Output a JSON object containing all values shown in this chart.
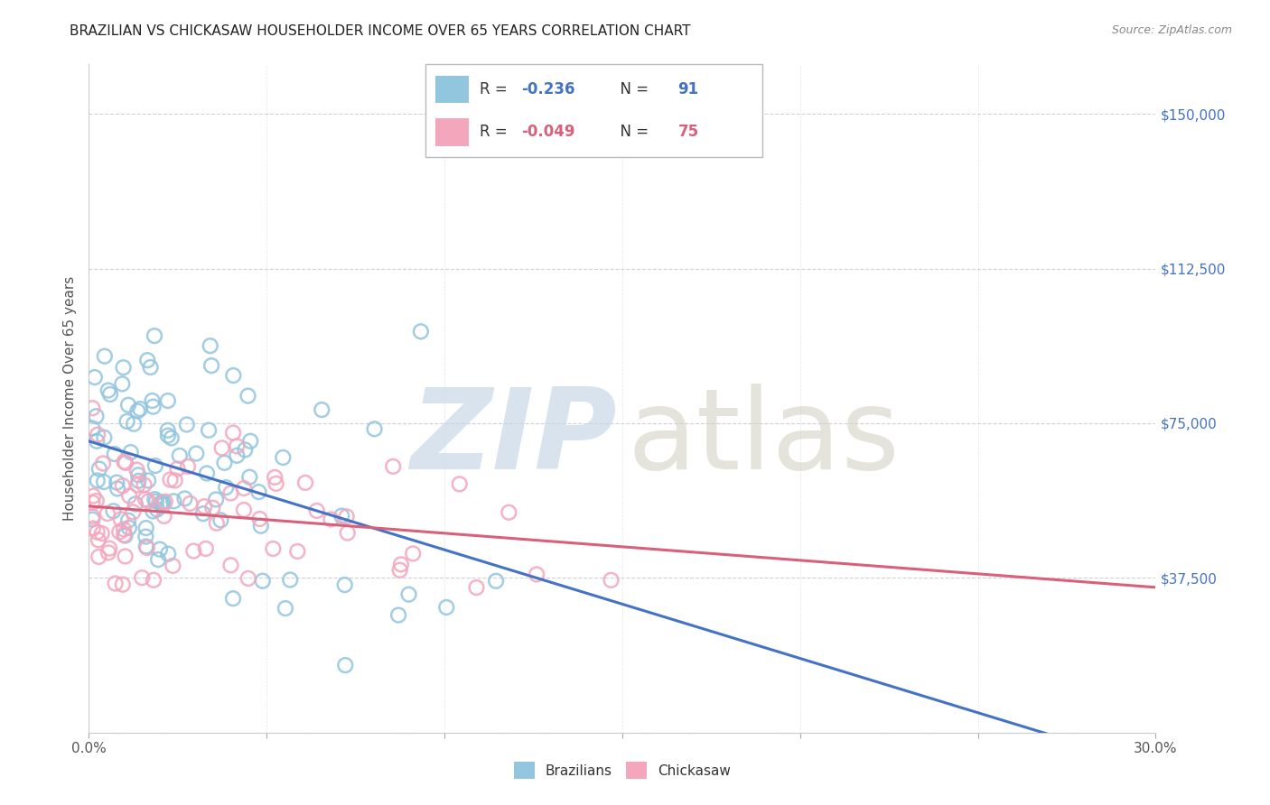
{
  "title": "BRAZILIAN VS CHICKASAW HOUSEHOLDER INCOME OVER 65 YEARS CORRELATION CHART",
  "source": "Source: ZipAtlas.com",
  "ylabel": "Householder Income Over 65 years",
  "ytick_positions": [
    0,
    37500,
    75000,
    112500,
    150000
  ],
  "ytick_labels": [
    "",
    "$37,500",
    "$75,000",
    "$112,500",
    "$150,000"
  ],
  "xlim": [
    0.0,
    0.3
  ],
  "ylim": [
    0,
    162000
  ],
  "xtick_positions": [
    0.0,
    0.05,
    0.1,
    0.15,
    0.2,
    0.25,
    0.3
  ],
  "xtick_labels": [
    "0.0%",
    "",
    "",
    "",
    "",
    "",
    "30.0%"
  ],
  "legend_labels": [
    "Brazilians",
    "Chickasaw"
  ],
  "r_blue": "-0.236",
  "n_blue": "91",
  "r_pink": "-0.049",
  "n_pink": "75",
  "blue_color": "#92C5DE",
  "pink_color": "#F4A6BD",
  "line_blue": "#4472C4",
  "line_pink": "#D9607A",
  "title_color": "#222222",
  "source_color": "#888888",
  "ylabel_color": "#555555",
  "ytick_color": "#4472C4",
  "grid_color": "#cccccc",
  "background": "#ffffff"
}
